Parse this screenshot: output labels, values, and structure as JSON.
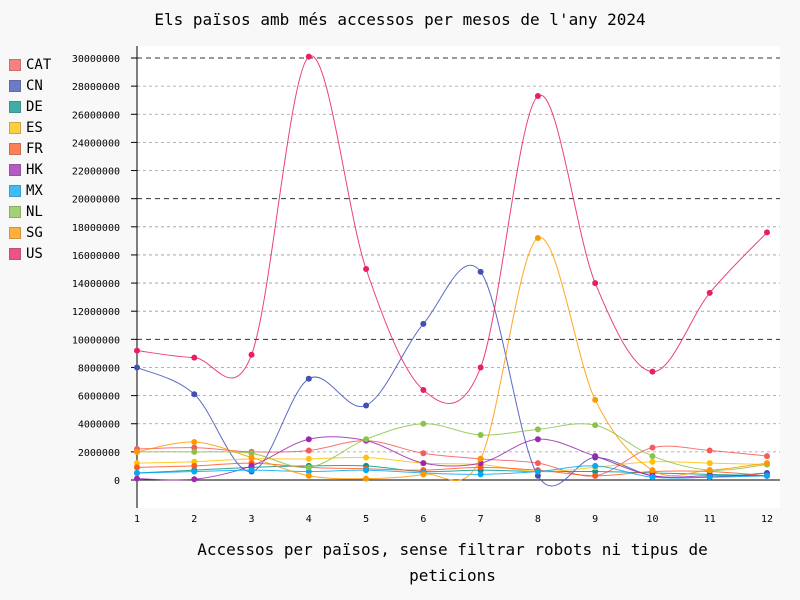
{
  "title": "Els països amb més accessos per mesos de l'any 2024",
  "chart_data": {
    "type": "line",
    "title": "Els països amb més accessos per mesos de l'any 2024",
    "xlabel": "Accessos per països, sense filtrar robots ni tipus de peticions",
    "ylabel": "",
    "x": [
      1,
      2,
      3,
      4,
      5,
      6,
      7,
      8,
      9,
      10,
      11,
      12
    ],
    "ylim": [
      -2000000,
      30500000
    ],
    "yticks": [
      0,
      2000000,
      4000000,
      6000000,
      8000000,
      10000000,
      12000000,
      14000000,
      16000000,
      18000000,
      20000000,
      22000000,
      24000000,
      26000000,
      28000000,
      30000000
    ],
    "ytick_labels": [
      "0",
      "2000000",
      "4000000",
      "6000000",
      "8000000",
      "10000000",
      "12000000",
      "14000000",
      "16000000",
      "18000000",
      "20000000",
      "22000000",
      "24000000",
      "26000000",
      "28000000",
      "30000000"
    ],
    "xtick_labels": [
      "1",
      "2",
      "3",
      "4",
      "5",
      "6",
      "7",
      "8",
      "9",
      "10",
      "11",
      "12"
    ],
    "grid": "horizontal dashed",
    "legend_position": "left",
    "series": [
      {
        "name": "CAT",
        "color": "#f45b5b",
        "values": [
          2200000,
          2300000,
          2000000,
          2100000,
          2800000,
          1900000,
          1500000,
          1200000,
          300000,
          2300000,
          2100000,
          1700000
        ]
      },
      {
        "name": "CN",
        "color": "#3f51b5",
        "values": [
          8000000,
          6100000,
          600000,
          7200000,
          5300000,
          11100000,
          14800000,
          300000,
          1600000,
          300000,
          200000,
          500000
        ]
      },
      {
        "name": "DE",
        "color": "#009688",
        "values": [
          500000,
          700000,
          900000,
          1000000,
          1000000,
          600000,
          700000,
          600000,
          600000,
          500000,
          400000,
          300000
        ]
      },
      {
        "name": "ES",
        "color": "#ffc107",
        "values": [
          1200000,
          1300000,
          1500000,
          1500000,
          1600000,
          1200000,
          1100000,
          600000,
          900000,
          1300000,
          1200000,
          1100000
        ]
      },
      {
        "name": "FR",
        "color": "#ff5722",
        "values": [
          900000,
          1000000,
          1200000,
          900000,
          800000,
          700000,
          900000,
          700000,
          300000,
          600000,
          600000,
          300000
        ]
      },
      {
        "name": "HK",
        "color": "#9c27b0",
        "values": [
          100000,
          50000,
          1000000,
          2900000,
          2800000,
          1200000,
          1200000,
          2900000,
          1700000,
          300000,
          300000,
          300000
        ]
      },
      {
        "name": "MX",
        "color": "#03a9f4",
        "values": [
          500000,
          600000,
          700000,
          600000,
          700000,
          500000,
          400000,
          600000,
          1000000,
          200000,
          200000,
          300000
        ]
      },
      {
        "name": "NL",
        "color": "#8bc34a",
        "values": [
          2000000,
          2000000,
          1900000,
          900000,
          2900000,
          4000000,
          3200000,
          3600000,
          3900000,
          1700000,
          700000,
          1100000
        ]
      },
      {
        "name": "SG",
        "color": "#ff9800",
        "values": [
          2000000,
          2700000,
          1600000,
          300000,
          100000,
          400000,
          1500000,
          17200000,
          5700000,
          700000,
          700000,
          1200000
        ]
      },
      {
        "name": "US",
        "color": "#e91e63",
        "values": [
          9200000,
          8700000,
          8900000,
          30100000,
          15000000,
          6400000,
          8000000,
          27300000,
          14000000,
          7700000,
          13300000,
          17600000
        ]
      }
    ]
  }
}
